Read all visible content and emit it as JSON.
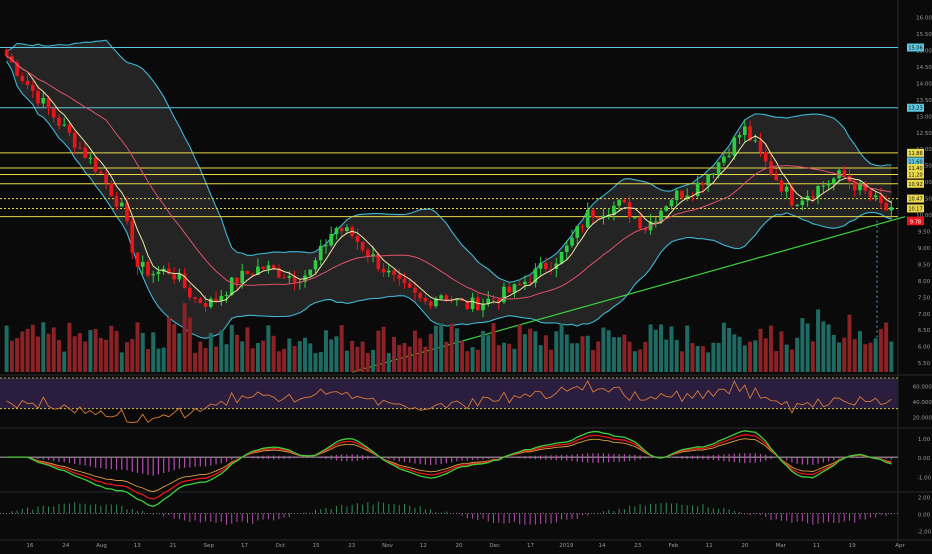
{
  "chart_data": {
    "type": "candlestick",
    "colors": {
      "background": "#0a0a0a",
      "up": "#2ecc40",
      "down": "#e8161b",
      "volume_up": "#1f6b63",
      "volume_down": "#8b2326",
      "bollinger_band": "#3fb7d4",
      "bollinger_fill": "#3a3a3a",
      "ma_fast": "#f1e6a8",
      "ma_slow": "#e0506a",
      "trendline": "#3dd13d",
      "horizontal_blue": "#5ec7e0",
      "horizontal_yellow": "#e8d84a",
      "rsi_line": "#d67a3a",
      "rsi_band": "#2b1d3d",
      "macd_line": "#3dd13d",
      "signal_line": "#e8161b",
      "macd_orange": "#e0a040",
      "histogram": "#b54bb0"
    },
    "price_axis": {
      "ticks": [
        "16.00",
        "15.50",
        "15.00",
        "14.50",
        "14.00",
        "13.50",
        "13.00",
        "12.50",
        "12.00",
        "11.50",
        "11.00",
        "10.50",
        "10.00",
        "9.50",
        "9.00",
        "8.50",
        "8.00",
        "7.50",
        "7.00",
        "6.50",
        "6.00",
        "5.50"
      ],
      "ylim": [
        5.2,
        16.2
      ]
    },
    "price_labels": [
      {
        "value": 15.06,
        "text": "15.06",
        "style": "blue"
      },
      {
        "value": 13.23,
        "text": "13.23",
        "style": "blue"
      },
      {
        "value": 11.86,
        "text": "11.86",
        "style": "yellow"
      },
      {
        "value": 11.6,
        "text": "11.60",
        "style": "blue"
      },
      {
        "value": 11.4,
        "text": "11.40",
        "style": "yellow"
      },
      {
        "value": 11.2,
        "text": "11.20",
        "style": "yellow"
      },
      {
        "value": 10.92,
        "text": "10.92",
        "style": "yellow"
      },
      {
        "value": 10.47,
        "text": "10.47",
        "style": "yellow"
      },
      {
        "value": 10.17,
        "text": "10.17",
        "style": "yellow"
      },
      {
        "value": 9.8,
        "text": "9.80",
        "style": "red"
      },
      {
        "value": 9.78,
        "text": "9.78",
        "style": "red"
      }
    ],
    "horizontal_lines": [
      {
        "value": 15.06,
        "style": "blue"
      },
      {
        "value": 13.23,
        "style": "blue"
      },
      {
        "value": 11.86,
        "style": "yellow"
      },
      {
        "value": 11.4,
        "style": "yellow"
      },
      {
        "value": 11.2,
        "style": "yellow"
      },
      {
        "value": 10.92,
        "style": "yellow"
      },
      {
        "value": 10.47,
        "style": "yellow-dotted"
      },
      {
        "value": 10.17,
        "style": "yellow-dotted"
      },
      {
        "value": 9.92,
        "style": "yellow"
      }
    ],
    "x_axis_labels": [
      "16",
      "24",
      "Aug",
      "13",
      "21",
      "Sep",
      "17",
      "Oct",
      "15",
      "23",
      "Nov",
      "12",
      "20",
      "Dec",
      "17",
      "2019",
      "14",
      "23",
      "Feb",
      "11",
      "20",
      "Mar",
      "11",
      "19",
      "Apr"
    ],
    "rsi": {
      "ticks": [
        "60.0000",
        "40.0000",
        "20.0000"
      ],
      "ylim": [
        10,
        70
      ],
      "band": [
        30,
        70
      ]
    },
    "macd": {
      "ticks": [
        "1.00",
        "0.00",
        "-1.00"
      ],
      "ylim": [
        -1.6,
        1.3
      ]
    },
    "osc": {
      "ticks": [
        "2.00",
        "0.00",
        "-2.00"
      ],
      "ylim": [
        -2.8,
        2.2
      ]
    }
  }
}
